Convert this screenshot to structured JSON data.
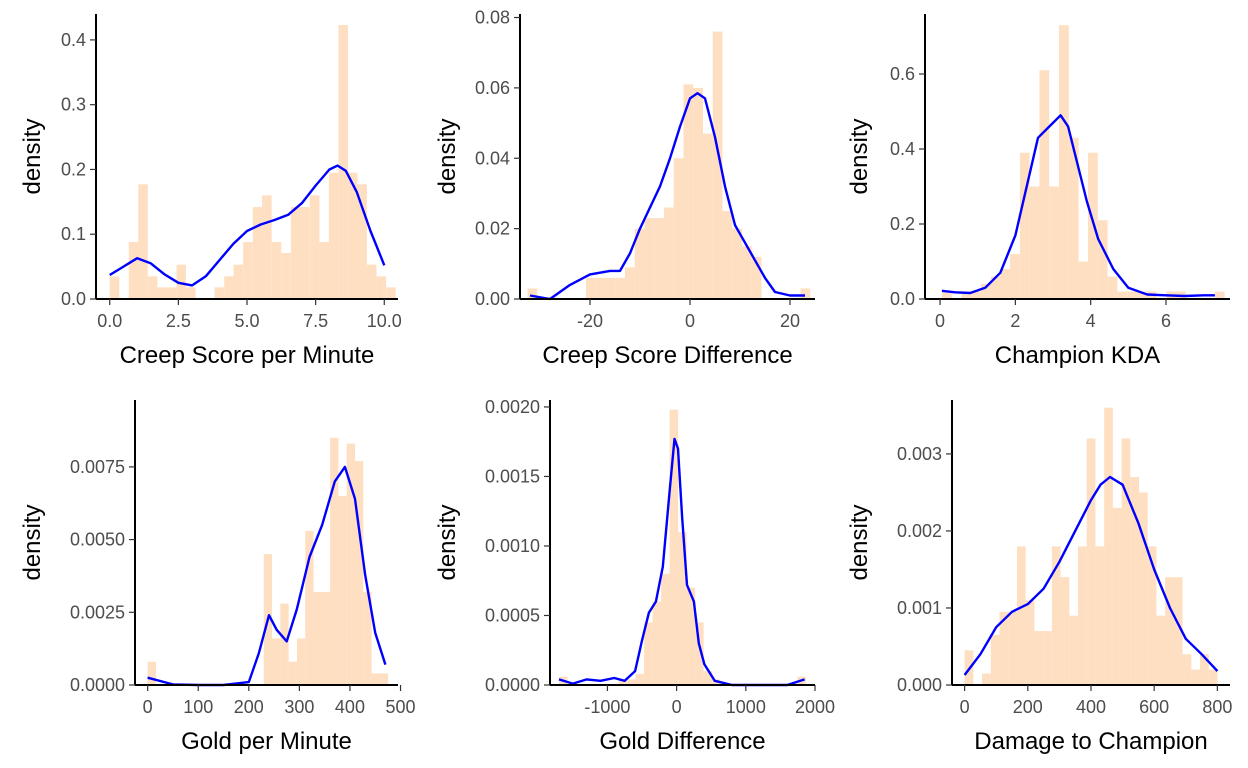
{
  "colors": {
    "bar_fill": "#fedfc2",
    "density_line": "#0000ff",
    "axis": "#000000",
    "tick_text": "#4d4d4d"
  },
  "chart_data": [
    {
      "type": "bar",
      "xlabel": "Creep Score per Minute",
      "ylabel": "density",
      "xlim": [
        -0.5,
        10.5
      ],
      "ylim": [
        0,
        0.44
      ],
      "xticks": [
        0,
        2.5,
        5,
        7.5,
        10
      ],
      "xtick_labels": [
        "0.0",
        "2.5",
        "5.0",
        "7.5",
        "10.0"
      ],
      "yticks": [
        0,
        0.1,
        0.2,
        0.3,
        0.4
      ],
      "ytick_labels": [
        "0.0",
        "0.1",
        "0.2",
        "0.3",
        "0.4"
      ],
      "bin_width": 0.347,
      "bins": [
        [
          0,
          0.035
        ],
        [
          0.347,
          0.0
        ],
        [
          0.694,
          0.088
        ],
        [
          1.04,
          0.177
        ],
        [
          1.39,
          0.035
        ],
        [
          1.74,
          0.018
        ],
        [
          2.08,
          0.018
        ],
        [
          2.43,
          0.053
        ],
        [
          2.78,
          0.018
        ],
        [
          3.12,
          0.0
        ],
        [
          3.47,
          0.0
        ],
        [
          3.82,
          0.018
        ],
        [
          4.17,
          0.035
        ],
        [
          4.51,
          0.053
        ],
        [
          4.86,
          0.088
        ],
        [
          5.21,
          0.142
        ],
        [
          5.55,
          0.16
        ],
        [
          5.9,
          0.088
        ],
        [
          6.25,
          0.071
        ],
        [
          6.6,
          0.142
        ],
        [
          6.94,
          0.142
        ],
        [
          7.29,
          0.16
        ],
        [
          7.64,
          0.088
        ],
        [
          7.98,
          0.195
        ],
        [
          8.33,
          0.423
        ],
        [
          8.68,
          0.195
        ],
        [
          9.02,
          0.177
        ],
        [
          9.37,
          0.053
        ],
        [
          9.72,
          0.035
        ],
        [
          10.07,
          0.018
        ]
      ],
      "density": [
        [
          0,
          0.037
        ],
        [
          0.5,
          0.05
        ],
        [
          1.0,
          0.063
        ],
        [
          1.5,
          0.055
        ],
        [
          2.0,
          0.038
        ],
        [
          2.5,
          0.025
        ],
        [
          3.0,
          0.021
        ],
        [
          3.5,
          0.035
        ],
        [
          4.0,
          0.06
        ],
        [
          4.5,
          0.085
        ],
        [
          5.0,
          0.105
        ],
        [
          5.5,
          0.115
        ],
        [
          6.0,
          0.122
        ],
        [
          6.5,
          0.13
        ],
        [
          7.0,
          0.148
        ],
        [
          7.5,
          0.175
        ],
        [
          8.0,
          0.2
        ],
        [
          8.3,
          0.206
        ],
        [
          8.6,
          0.198
        ],
        [
          9.0,
          0.165
        ],
        [
          9.5,
          0.105
        ],
        [
          10.0,
          0.052
        ]
      ]
    },
    {
      "type": "bar",
      "xlabel": "Creep Score Difference",
      "ylabel": "density",
      "xlim": [
        -34,
        25
      ],
      "ylim": [
        0,
        0.081
      ],
      "xticks": [
        -20,
        0,
        20
      ],
      "xtick_labels": [
        "-20",
        "0",
        "20"
      ],
      "yticks": [
        0,
        0.02,
        0.04,
        0.06,
        0.08
      ],
      "ytick_labels": [
        "0.00",
        "0.02",
        "0.04",
        "0.06",
        "0.08"
      ],
      "bin_width": 1.95,
      "bins": [
        [
          -32.5,
          0.003
        ],
        [
          -30.55,
          0.0
        ],
        [
          -28.6,
          0.0
        ],
        [
          -26.65,
          0.0
        ],
        [
          -24.7,
          0.0
        ],
        [
          -22.75,
          0.0
        ],
        [
          -20.8,
          0.006
        ],
        [
          -18.85,
          0.006
        ],
        [
          -16.9,
          0.006
        ],
        [
          -14.95,
          0.006
        ],
        [
          -13.0,
          0.009
        ],
        [
          -11.05,
          0.02
        ],
        [
          -9.1,
          0.023
        ],
        [
          -7.15,
          0.023
        ],
        [
          -5.2,
          0.026
        ],
        [
          -3.25,
          0.04
        ],
        [
          -1.3,
          0.061
        ],
        [
          0.65,
          0.06
        ],
        [
          2.6,
          0.047
        ],
        [
          4.55,
          0.076
        ],
        [
          6.5,
          0.025
        ],
        [
          8.45,
          0.02
        ],
        [
          10.4,
          0.015
        ],
        [
          12.35,
          0.012
        ],
        [
          14.3,
          0.0
        ],
        [
          16.25,
          0.0
        ],
        [
          18.2,
          0.0
        ],
        [
          20.15,
          0.0
        ],
        [
          22.1,
          0.003
        ]
      ],
      "density": [
        [
          -32,
          0.001
        ],
        [
          -28,
          0.0
        ],
        [
          -24,
          0.004
        ],
        [
          -20,
          0.007
        ],
        [
          -16,
          0.008
        ],
        [
          -14,
          0.008
        ],
        [
          -12,
          0.013
        ],
        [
          -10,
          0.02
        ],
        [
          -8,
          0.026
        ],
        [
          -6,
          0.032
        ],
        [
          -4,
          0.04
        ],
        [
          -2,
          0.049
        ],
        [
          0,
          0.057
        ],
        [
          1.5,
          0.0585
        ],
        [
          3,
          0.057
        ],
        [
          5,
          0.046
        ],
        [
          7,
          0.032
        ],
        [
          9,
          0.021
        ],
        [
          11,
          0.016
        ],
        [
          13,
          0.011
        ],
        [
          15,
          0.006
        ],
        [
          17,
          0.002
        ],
        [
          20,
          0.001
        ],
        [
          23,
          0.001
        ]
      ]
    },
    {
      "type": "bar",
      "xlabel": "Champion KDA",
      "ylabel": "density",
      "xlim": [
        -0.4,
        7.7
      ],
      "ylim": [
        0,
        0.76
      ],
      "xticks": [
        0,
        2,
        4,
        6
      ],
      "xtick_labels": [
        "0",
        "2",
        "4",
        "6"
      ],
      "yticks": [
        0,
        0.2,
        0.4,
        0.6
      ],
      "ytick_labels": [
        "0.0",
        "0.2",
        "0.4",
        "0.6"
      ],
      "bin_width": 0.259,
      "bins": [
        [
          0.05,
          0.02
        ],
        [
          0.31,
          0.0
        ],
        [
          0.57,
          0.02
        ],
        [
          0.83,
          0.02
        ],
        [
          1.09,
          0.04
        ],
        [
          1.35,
          0.06
        ],
        [
          1.6,
          0.08
        ],
        [
          1.86,
          0.12
        ],
        [
          2.12,
          0.39
        ],
        [
          2.38,
          0.3
        ],
        [
          2.64,
          0.61
        ],
        [
          2.9,
          0.3
        ],
        [
          3.16,
          0.73
        ],
        [
          3.42,
          0.43
        ],
        [
          3.68,
          0.1
        ],
        [
          3.93,
          0.39
        ],
        [
          4.19,
          0.21
        ],
        [
          4.45,
          0.06
        ],
        [
          4.71,
          0.02
        ],
        [
          4.97,
          0.02
        ],
        [
          5.23,
          0.02
        ],
        [
          5.49,
          0.02
        ],
        [
          5.75,
          0.0
        ],
        [
          6.01,
          0.02
        ],
        [
          6.27,
          0.02
        ],
        [
          6.52,
          0.0
        ],
        [
          6.78,
          0.0
        ],
        [
          7.04,
          0.0
        ],
        [
          7.3,
          0.02
        ]
      ],
      "density": [
        [
          0.05,
          0.022
        ],
        [
          0.4,
          0.018
        ],
        [
          0.8,
          0.016
        ],
        [
          1.2,
          0.03
        ],
        [
          1.6,
          0.07
        ],
        [
          2.0,
          0.17
        ],
        [
          2.3,
          0.3
        ],
        [
          2.6,
          0.43
        ],
        [
          2.9,
          0.46
        ],
        [
          3.2,
          0.49
        ],
        [
          3.4,
          0.46
        ],
        [
          3.6,
          0.38
        ],
        [
          3.9,
          0.26
        ],
        [
          4.2,
          0.16
        ],
        [
          4.6,
          0.08
        ],
        [
          5.0,
          0.03
        ],
        [
          5.5,
          0.012
        ],
        [
          6.0,
          0.01
        ],
        [
          6.5,
          0.008
        ],
        [
          7.0,
          0.01
        ],
        [
          7.3,
          0.01
        ]
      ]
    },
    {
      "type": "bar",
      "xlabel": "Gold per Minute",
      "ylabel": "density",
      "xlim": [
        -25,
        495
      ],
      "ylim": [
        0,
        0.0098
      ],
      "xticks": [
        0,
        100,
        200,
        300,
        400,
        500
      ],
      "xtick_labels": [
        "0",
        "100",
        "200",
        "300",
        "400",
        "500"
      ],
      "yticks": [
        0,
        0.0025,
        0.005,
        0.0075
      ],
      "ytick_labels": [
        "0.0000",
        "0.0025",
        "0.0050",
        "0.0075"
      ],
      "bin_width": 16.4,
      "bins": [
        [
          0,
          0.0008
        ],
        [
          16.4,
          0.0
        ],
        [
          32.8,
          0.0
        ],
        [
          49.2,
          0.0
        ],
        [
          65.6,
          0.0
        ],
        [
          82.0,
          0.0
        ],
        [
          98.4,
          0.0
        ],
        [
          114.8,
          0.0
        ],
        [
          131.2,
          0.0
        ],
        [
          147.6,
          0.0
        ],
        [
          164.0,
          0.0
        ],
        [
          180.4,
          0.0
        ],
        [
          196.8,
          0.0
        ],
        [
          213.2,
          0.0
        ],
        [
          229.6,
          0.0045
        ],
        [
          246.0,
          0.0016
        ],
        [
          262.4,
          0.0028
        ],
        [
          278.8,
          0.0008
        ],
        [
          295.2,
          0.0016
        ],
        [
          311.6,
          0.0053
        ],
        [
          328.0,
          0.0032
        ],
        [
          344.4,
          0.0032
        ],
        [
          360.8,
          0.0085
        ],
        [
          377.2,
          0.0065
        ],
        [
          393.6,
          0.0083
        ],
        [
          410.0,
          0.0077
        ],
        [
          426.4,
          0.0032
        ],
        [
          442.8,
          0.0004
        ],
        [
          459.2,
          0.0004
        ]
      ],
      "density": [
        [
          0,
          0.00025
        ],
        [
          50,
          2e-05
        ],
        [
          100,
          0.0
        ],
        [
          150,
          0.0
        ],
        [
          200,
          0.0001
        ],
        [
          220,
          0.0011
        ],
        [
          240,
          0.0024
        ],
        [
          255,
          0.0019
        ],
        [
          275,
          0.0015
        ],
        [
          295,
          0.0026
        ],
        [
          320,
          0.0044
        ],
        [
          345,
          0.0055
        ],
        [
          370,
          0.007
        ],
        [
          390,
          0.0075
        ],
        [
          410,
          0.0064
        ],
        [
          430,
          0.0038
        ],
        [
          450,
          0.0018
        ],
        [
          470,
          0.0007
        ]
      ]
    },
    {
      "type": "bar",
      "xlabel": "Gold Difference",
      "ylabel": "density",
      "xlim": [
        -1830,
        2000
      ],
      "ylim": [
        0,
        0.00205
      ],
      "xticks": [
        -1000,
        0,
        1000,
        2000
      ],
      "xtick_labels": [
        "-1000",
        "0",
        "1000",
        "2000"
      ],
      "yticks": [
        0,
        0.0005,
        0.001,
        0.0015,
        0.002
      ],
      "ytick_labels": [
        "0.0000",
        "0.0005",
        "0.0010",
        "0.0015",
        "0.0020"
      ],
      "bin_width": 123,
      "bins": [
        [
          -1700,
          6e-05
        ],
        [
          -1577,
          0.0
        ],
        [
          -1454,
          0.0
        ],
        [
          -1331,
          0.0
        ],
        [
          -1208,
          0.0
        ],
        [
          -1085,
          0.0
        ],
        [
          -962,
          0.0
        ],
        [
          -839,
          4e-05
        ],
        [
          -716,
          4e-05
        ],
        [
          -593,
          8e-05
        ],
        [
          -470,
          0.00045
        ],
        [
          -347,
          0.0006
        ],
        [
          -224,
          0.0008
        ],
        [
          -101,
          0.00198
        ],
        [
          22,
          0.0011
        ],
        [
          145,
          0.0007
        ],
        [
          268,
          0.00045
        ],
        [
          391,
          0.0001
        ],
        [
          514,
          4e-05
        ],
        [
          637,
          0.0
        ],
        [
          760,
          0.0
        ],
        [
          883,
          0.0
        ],
        [
          1006,
          0.0
        ],
        [
          1129,
          0.0
        ],
        [
          1252,
          0.0
        ],
        [
          1375,
          0.0
        ],
        [
          1498,
          0.0
        ],
        [
          1621,
          0.0
        ],
        [
          1744,
          6e-05
        ]
      ],
      "density": [
        [
          -1700,
          4e-05
        ],
        [
          -1500,
          1e-05
        ],
        [
          -1300,
          4e-05
        ],
        [
          -1100,
          3e-05
        ],
        [
          -900,
          5e-05
        ],
        [
          -750,
          3e-05
        ],
        [
          -600,
          0.0001
        ],
        [
          -500,
          0.00032
        ],
        [
          -400,
          0.00052
        ],
        [
          -300,
          0.0006
        ],
        [
          -200,
          0.00085
        ],
        [
          -100,
          0.0014
        ],
        [
          -30,
          0.00177
        ],
        [
          20,
          0.0017
        ],
        [
          80,
          0.0012
        ],
        [
          150,
          0.00072
        ],
        [
          250,
          0.0006
        ],
        [
          320,
          0.0003
        ],
        [
          400,
          0.00015
        ],
        [
          550,
          3e-05
        ],
        [
          800,
          0.0
        ],
        [
          1200,
          0.0
        ],
        [
          1600,
          0.0
        ],
        [
          1850,
          4e-05
        ]
      ]
    },
    {
      "type": "bar",
      "xlabel": "Damage to Champion",
      "ylabel": "density",
      "xlim": [
        -40,
        840
      ],
      "ylim": [
        0,
        0.0037
      ],
      "xticks": [
        0,
        200,
        400,
        600,
        800
      ],
      "xtick_labels": [
        "0",
        "200",
        "400",
        "600",
        "800"
      ],
      "yticks": [
        0,
        0.001,
        0.002,
        0.003
      ],
      "ytick_labels": [
        "0.000",
        "0.001",
        "0.002",
        "0.003"
      ],
      "bin_width": 27.6,
      "bins": [
        [
          0,
          0.00045
        ],
        [
          27.6,
          0.0
        ],
        [
          55.2,
          0.00015
        ],
        [
          82.8,
          0.00065
        ],
        [
          110.4,
          0.00095
        ],
        [
          138,
          0.00095
        ],
        [
          165.6,
          0.0018
        ],
        [
          193.2,
          0.0011
        ],
        [
          220.8,
          0.0007
        ],
        [
          248.4,
          0.0007
        ],
        [
          276,
          0.0018
        ],
        [
          303.6,
          0.0014
        ],
        [
          331.2,
          0.0009
        ],
        [
          358.8,
          0.0018
        ],
        [
          386.4,
          0.0032
        ],
        [
          414,
          0.0018
        ],
        [
          441.6,
          0.0036
        ],
        [
          469.2,
          0.0023
        ],
        [
          496.8,
          0.0032
        ],
        [
          524.4,
          0.0027
        ],
        [
          552,
          0.0025
        ],
        [
          579.6,
          0.0018
        ],
        [
          607.2,
          0.0009
        ],
        [
          634.8,
          0.0014
        ],
        [
          662.4,
          0.0014
        ],
        [
          690,
          0.0004
        ],
        [
          717.6,
          0.0002
        ],
        [
          745.2,
          0.0004
        ],
        [
          772.8,
          0.0002
        ]
      ],
      "density": [
        [
          0,
          0.00013
        ],
        [
          50,
          0.0004
        ],
        [
          100,
          0.00075
        ],
        [
          150,
          0.00095
        ],
        [
          200,
          0.00105
        ],
        [
          250,
          0.00125
        ],
        [
          300,
          0.0016
        ],
        [
          350,
          0.002
        ],
        [
          400,
          0.0024
        ],
        [
          430,
          0.0026
        ],
        [
          460,
          0.0027
        ],
        [
          500,
          0.0026
        ],
        [
          550,
          0.0021
        ],
        [
          600,
          0.0015
        ],
        [
          650,
          0.001
        ],
        [
          700,
          0.0006
        ],
        [
          750,
          0.0004
        ],
        [
          800,
          0.00018
        ]
      ]
    }
  ]
}
